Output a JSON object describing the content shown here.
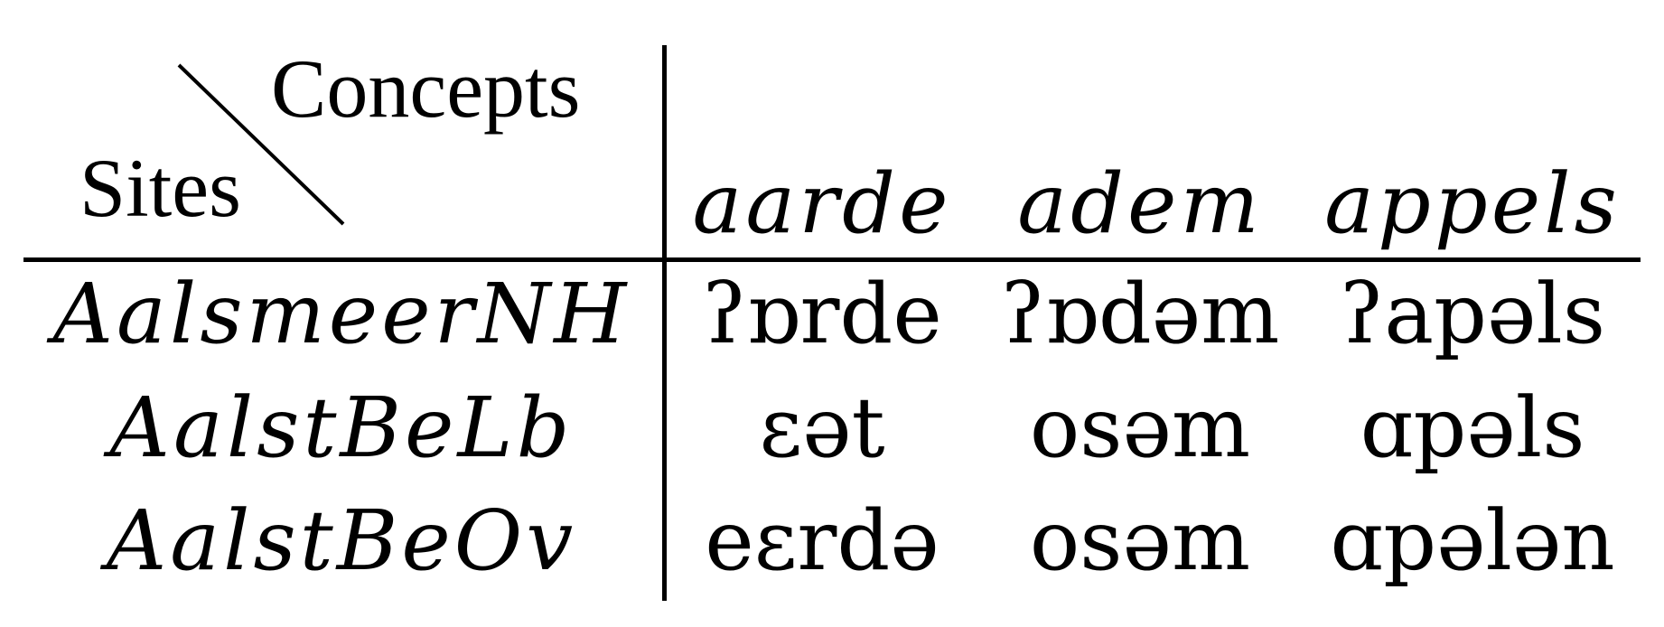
{
  "header": {
    "concepts_label": "Concepts",
    "sites_label": "Sites"
  },
  "concepts": [
    "aarde",
    "adem",
    "appels"
  ],
  "rows": [
    {
      "site": "AalsmeerNH",
      "values": [
        "ʔɒrde",
        "ʔɒdəm",
        "ʔapəls"
      ]
    },
    {
      "site": "AalstBeLb",
      "values": [
        "ɛət",
        "osəm",
        "ɑpəls"
      ]
    },
    {
      "site": "AalstBeOv",
      "values": [
        "eɛrdə",
        "osəm",
        "ɑpələn"
      ]
    }
  ]
}
